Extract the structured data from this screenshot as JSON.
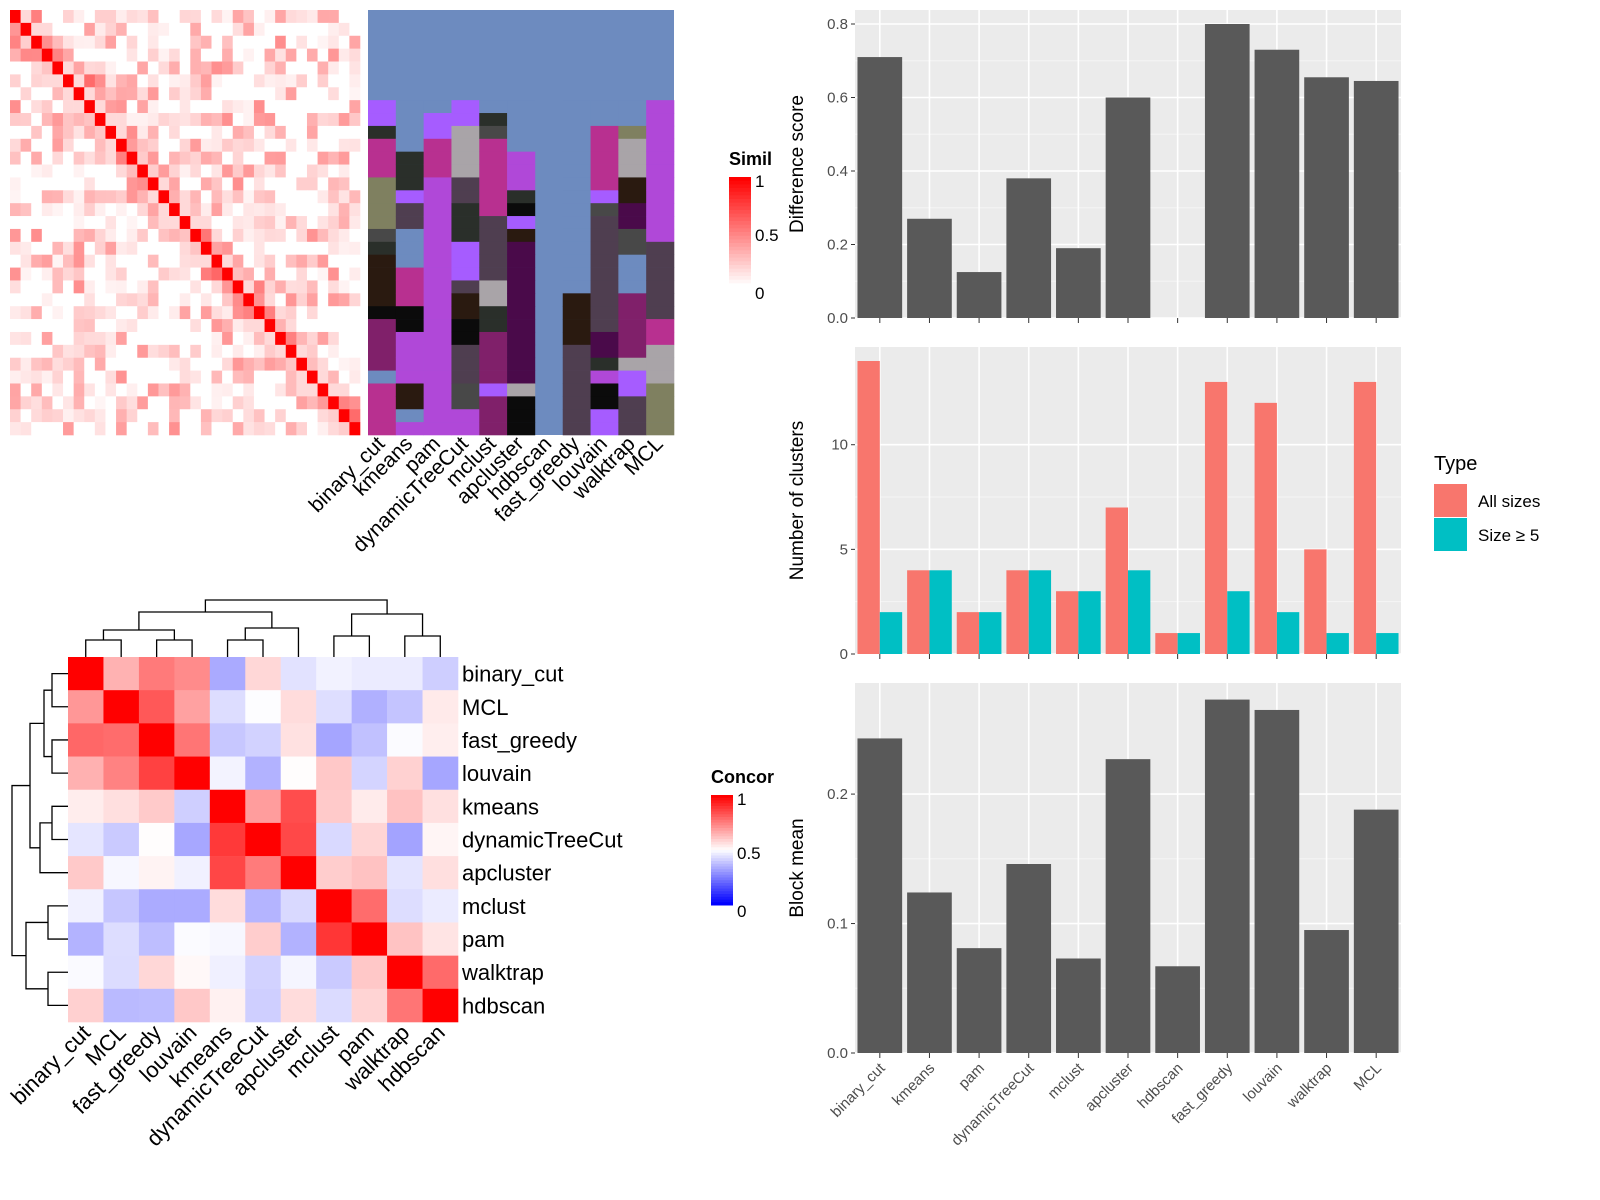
{
  "methods_order": [
    "binary_cut",
    "kmeans",
    "pam",
    "dynamicTreeCut",
    "mclust",
    "apcluster",
    "hdbscan",
    "fast_greedy",
    "louvain",
    "walktrap",
    "MCL"
  ],
  "similarity_heatmap": {
    "legend_title": "Similarity",
    "legend_ticks": [
      1,
      0.5,
      0
    ],
    "n_terms": 33,
    "colors": {
      "low": "#ffffff",
      "high": "#ff0000"
    }
  },
  "cluster_membership_grid": {
    "background_color": "#6d8bbf",
    "palette": [
      "#6d8bbf",
      "#7f8060",
      "#4a0a4a",
      "#484848",
      "#2a2f2a",
      "#4f3e50",
      "#a65cff",
      "#0b0b0b",
      "#b048d8",
      "#a9a4a8",
      "#2a1a10",
      "#80206a",
      "#b83090"
    ]
  },
  "concordance_heatmap": {
    "legend_title": "Concordance",
    "legend_ticks": [
      1,
      0.5,
      0
    ],
    "row_order": [
      "binary_cut",
      "MCL",
      "fast_greedy",
      "louvain",
      "kmeans",
      "dynamicTreeCut",
      "apcluster",
      "mclust",
      "pam",
      "walktrap",
      "hdbscan"
    ],
    "col_order": [
      "binary_cut",
      "MCL",
      "fast_greedy",
      "louvain",
      "kmeans",
      "dynamicTreeCut",
      "apcluster",
      "mclust",
      "pam",
      "walktrap",
      "hdbscan"
    ],
    "colors": {
      "low": "#0000ff",
      "mid": "#ffffff",
      "high": "#ff0000"
    }
  },
  "chart_data": [
    {
      "type": "bar",
      "categories": [
        "binary_cut",
        "kmeans",
        "pam",
        "dynamicTreeCut",
        "mclust",
        "apcluster",
        "hdbscan",
        "fast_greedy",
        "louvain",
        "walktrap",
        "MCL"
      ],
      "values": [
        0.71,
        0.27,
        0.125,
        0.38,
        0.19,
        0.6,
        0,
        0.8,
        0.73,
        0.655,
        0.645
      ],
      "title": "",
      "xlabel": "",
      "ylabel": "Difference score",
      "ylim": [
        0,
        0.8
      ],
      "yticks": [
        "0.0",
        "0.2",
        "0.4",
        "0.6",
        "0.8"
      ],
      "ytick_values": [
        0,
        0.2,
        0.4,
        0.6,
        0.8
      ],
      "bar_color": "#595959",
      "panel_color": "#ebebeb"
    },
    {
      "type": "bar",
      "categories": [
        "binary_cut",
        "kmeans",
        "pam",
        "dynamicTreeCut",
        "mclust",
        "apcluster",
        "hdbscan",
        "fast_greedy",
        "louvain",
        "walktrap",
        "MCL"
      ],
      "series": [
        {
          "name": "All sizes",
          "values": [
            14,
            4,
            2,
            4,
            3,
            7,
            1,
            13,
            12,
            5,
            13
          ],
          "color": "#f8766d"
        },
        {
          "name": "Size ≥ 5",
          "values": [
            2,
            4,
            2,
            4,
            3,
            4,
            1,
            3,
            2,
            1,
            1
          ],
          "color": "#00bfc4"
        }
      ],
      "title": "",
      "xlabel": "",
      "ylabel": "Number of clusters",
      "ylim": [
        0,
        14
      ],
      "yticks": [
        "0",
        "5",
        "10"
      ],
      "ytick_values": [
        0,
        5,
        10
      ],
      "legend_title": "Type",
      "legend_position": "right",
      "panel_color": "#ebebeb"
    },
    {
      "type": "bar",
      "categories": [
        "binary_cut",
        "kmeans",
        "pam",
        "dynamicTreeCut",
        "mclust",
        "apcluster",
        "hdbscan",
        "fast_greedy",
        "louvain",
        "walktrap",
        "MCL"
      ],
      "values": [
        0.243,
        0.124,
        0.081,
        0.146,
        0.073,
        0.227,
        0.067,
        0.273,
        0.265,
        0.095,
        0.188
      ],
      "title": "",
      "xlabel": "",
      "ylabel": "Block mean",
      "ylim": [
        0,
        0.275
      ],
      "yticks": [
        "0.0",
        "0.1",
        "0.2"
      ],
      "ytick_values": [
        0,
        0.1,
        0.2
      ],
      "bar_color": "#595959",
      "panel_color": "#ebebeb"
    }
  ]
}
